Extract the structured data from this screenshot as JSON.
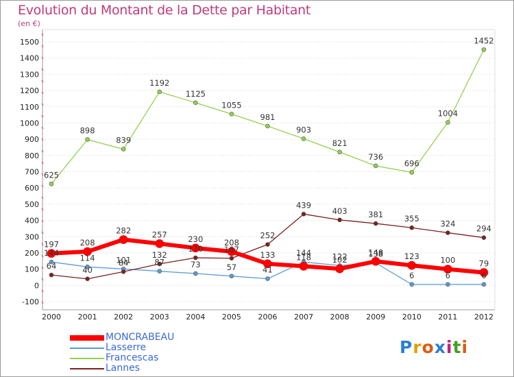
{
  "title": "Evolution du Montant de la Dette par Habitant",
  "subtitle": "(en €)",
  "logo": {
    "text": "Proxiti",
    "colors": [
      "#2a7fd4",
      "#e0a000",
      "#e05a10",
      "#2a7fd4",
      "#c02080",
      "#40a020",
      "#e05a10"
    ]
  },
  "chart_data": {
    "type": "line",
    "x": [
      2000,
      2001,
      2002,
      2003,
      2004,
      2005,
      2006,
      2007,
      2008,
      2009,
      2010,
      2011,
      2012
    ],
    "y_ticks": [
      -100,
      0,
      100,
      200,
      300,
      400,
      500,
      600,
      700,
      800,
      900,
      1000,
      1100,
      1200,
      1300,
      1400,
      1500
    ],
    "ylim": [
      -100,
      1500
    ],
    "grid": "horizontal-dotted",
    "legend": "bottom-left",
    "series": [
      {
        "name": "MONCRABEAU",
        "color": "#ff0000",
        "width": 6,
        "values": [
          197,
          208,
          282,
          257,
          230,
          208,
          133,
          118,
          102,
          148,
          123,
          100,
          79
        ]
      },
      {
        "name": "Lasserre",
        "color": "#5b9bd5",
        "width": 1.3,
        "values": [
          144,
          114,
          101,
          87,
          73,
          57,
          41,
          144,
          122,
          138,
          6,
          6,
          6
        ]
      },
      {
        "name": "Francescas",
        "color": "#92d050",
        "width": 1.3,
        "values": [
          625,
          898,
          839,
          1192,
          1125,
          1055,
          981,
          903,
          821,
          736,
          696,
          1004,
          1452
        ]
      },
      {
        "name": "Lannes",
        "color": "#7b2020",
        "width": 1.3,
        "values": [
          64,
          40,
          84,
          132,
          170,
          167,
          252,
          439,
          403,
          381,
          355,
          324,
          294
        ]
      }
    ]
  }
}
